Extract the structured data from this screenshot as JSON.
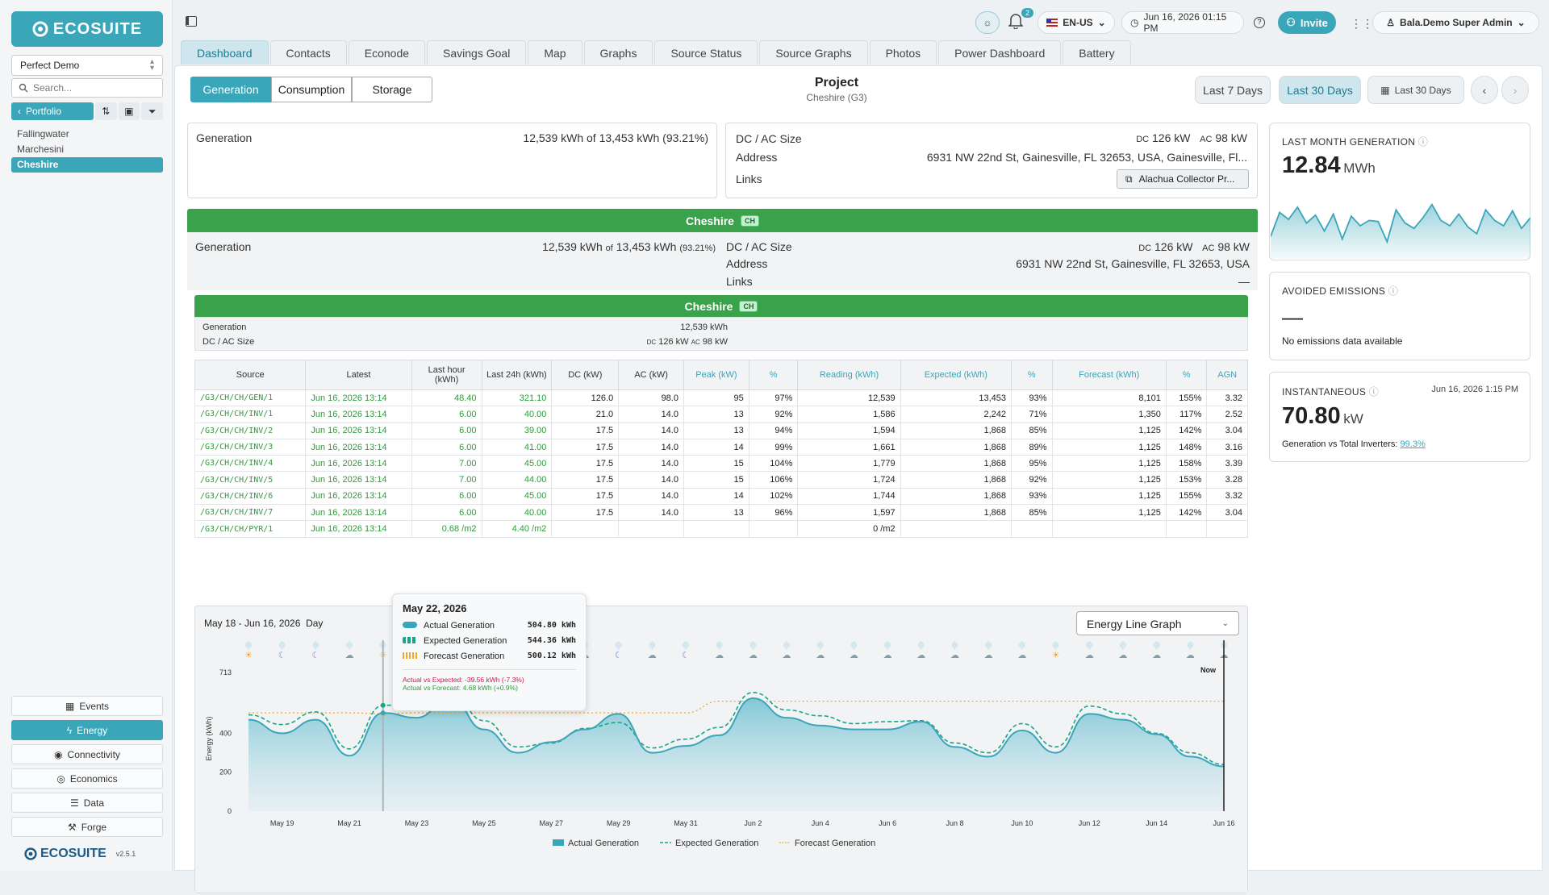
{
  "sidebar": {
    "portfolio_select": "Perfect Demo",
    "search_placeholder": "Search...",
    "portfolio_btn": "Portfolio",
    "projects": [
      "Fallingwater",
      "Marchesini",
      "Cheshire"
    ],
    "nav": [
      {
        "label": "Events",
        "icon": "calendar-icon"
      },
      {
        "label": "Energy",
        "icon": "lightning-icon"
      },
      {
        "label": "Connectivity",
        "icon": "signal-icon"
      },
      {
        "label": "Economics",
        "icon": "coins-icon"
      },
      {
        "label": "Data",
        "icon": "database-icon"
      },
      {
        "label": "Forge",
        "icon": "hammer-icon"
      }
    ],
    "footer_logo": "ECOSUITE",
    "version": "v2.5.1"
  },
  "logo": "ECOSUITE",
  "topbar": {
    "badge": "2",
    "lang": "EN-US",
    "datetime": "Jun 16, 2026 01:15 PM",
    "invite": "Invite",
    "user": "Bala.Demo Super Admin"
  },
  "tabs": [
    "Dashboard",
    "Contacts",
    "Econode",
    "Savings Goal",
    "Map",
    "Graphs",
    "Source Status",
    "Source Graphs",
    "Photos",
    "Power Dashboard",
    "Battery"
  ],
  "segment": [
    "Generation",
    "Consumption",
    "Storage"
  ],
  "project": {
    "title": "Project",
    "subtitle": "Cheshire (G3)"
  },
  "range": {
    "last7": "Last 7 Days",
    "last30": "Last 30 Days",
    "picker": "Last 30 Days"
  },
  "summary": {
    "gen_label": "Generation",
    "gen_value": "12,539 kWh of 13,453 kWh (93.21%)",
    "dcac_label": "DC / AC Size",
    "dc_pre": "DC",
    "dc": "126 kW",
    "ac_pre": "AC",
    "ac": "98 kW",
    "addr_label": "Address",
    "addr": "6931 NW 22nd St, Gainesville, FL 32653, USA, Gainesville, Fl...",
    "links_label": "Links",
    "link_btn": "Alachua Collector Pr..."
  },
  "site": {
    "name": "Cheshire",
    "tag": "CH",
    "gen_label": "Generation",
    "gen_main": "12,539 kWh",
    "gen_of": "of",
    "gen_total": "13,453 kWh",
    "gen_pct": "(93.21%)",
    "dcac_label": "DC / AC Size",
    "dc_pre": "DC",
    "dc": "126 kW",
    "ac_pre": "AC",
    "ac": "98 kW",
    "addr_label": "Address",
    "addr": "6931 NW 22nd St, Gainesville, FL 32653, USA",
    "links_label": "Links",
    "links_val": "—"
  },
  "system": {
    "name": "Cheshire",
    "tag": "CH",
    "gen_label": "Generation",
    "gen": "12,539 kWh",
    "dcac_label": "DC / AC Size",
    "dc_pre": "DC",
    "dc": "126 kW",
    "ac_pre": "AC",
    "ac": "98 kW"
  },
  "table": {
    "headers": [
      "Source",
      "Latest",
      "Last hour (kWh)",
      "Last 24h (kWh)",
      "DC (kW)",
      "AC (kW)",
      "Peak (kW)",
      "%",
      "Reading (kWh)",
      "Expected (kWh)",
      "%",
      "Forecast (kWh)",
      "%",
      "AGN"
    ],
    "rows": [
      [
        "/G3/CH/CH/GEN/1",
        "Jun 16, 2026 13:14",
        "48.40",
        "321.10",
        "126.0",
        "98.0",
        "95",
        "97%",
        "12,539",
        "13,453",
        "93%",
        "8,101",
        "155%",
        "3.32"
      ],
      [
        "/G3/CH/CH/INV/1",
        "Jun 16, 2026 13:14",
        "6.00",
        "40.00",
        "21.0",
        "14.0",
        "13",
        "92%",
        "1,586",
        "2,242",
        "71%",
        "1,350",
        "117%",
        "2.52"
      ],
      [
        "/G3/CH/CH/INV/2",
        "Jun 16, 2026 13:14",
        "6.00",
        "39.00",
        "17.5",
        "14.0",
        "13",
        "94%",
        "1,594",
        "1,868",
        "85%",
        "1,125",
        "142%",
        "3.04"
      ],
      [
        "/G3/CH/CH/INV/3",
        "Jun 16, 2026 13:14",
        "6.00",
        "41.00",
        "17.5",
        "14.0",
        "14",
        "99%",
        "1,661",
        "1,868",
        "89%",
        "1,125",
        "148%",
        "3.16"
      ],
      [
        "/G3/CH/CH/INV/4",
        "Jun 16, 2026 13:14",
        "7.00",
        "45.00",
        "17.5",
        "14.0",
        "15",
        "104%",
        "1,779",
        "1,868",
        "95%",
        "1,125",
        "158%",
        "3.39"
      ],
      [
        "/G3/CH/CH/INV/5",
        "Jun 16, 2026 13:14",
        "7.00",
        "44.00",
        "17.5",
        "14.0",
        "15",
        "106%",
        "1,724",
        "1,868",
        "92%",
        "1,125",
        "153%",
        "3.28"
      ],
      [
        "/G3/CH/CH/INV/6",
        "Jun 16, 2026 13:14",
        "6.00",
        "45.00",
        "17.5",
        "14.0",
        "14",
        "102%",
        "1,744",
        "1,868",
        "93%",
        "1,125",
        "155%",
        "3.32"
      ],
      [
        "/G3/CH/CH/INV/7",
        "Jun 16, 2026 13:14",
        "6.00",
        "40.00",
        "17.5",
        "14.0",
        "13",
        "96%",
        "1,597",
        "1,868",
        "85%",
        "1,125",
        "142%",
        "3.04"
      ],
      [
        "/G3/CH/CH/PYR/1",
        "Jun 16, 2026 13:14",
        "0.68 /m2",
        "4.40 /m2",
        "",
        "",
        "",
        "",
        "0 /m2",
        "",
        "",
        "",
        "",
        ""
      ]
    ]
  },
  "chart_header": {
    "range": "May 18 - Jun 16, 2026",
    "unit": "Day",
    "select": "Energy Line Graph"
  },
  "tooltip": {
    "date": "May 22, 2026",
    "rows": [
      {
        "label": "Actual Generation",
        "value": "504.80 kWh"
      },
      {
        "label": "Expected Generation",
        "value": "544.36 kWh"
      },
      {
        "label": "Forecast Generation",
        "value": "500.12 kWh"
      }
    ],
    "diff1": "Actual vs Expected: -39.56 kWh (-7.3%)",
    "diff2": "Actual vs Forecast: 4.68 kWh (+0.9%)"
  },
  "chart_data": {
    "type": "area",
    "ylabel": "Energy (kWh)",
    "yticks": [
      0,
      200,
      400,
      713
    ],
    "ylim": [
      0,
      750
    ],
    "x": [
      "May 18",
      "May 19",
      "May 20",
      "May 21",
      "May 22",
      "May 23",
      "May 24",
      "May 25",
      "May 26",
      "May 27",
      "May 28",
      "May 29",
      "May 30",
      "May 31",
      "Jun 1",
      "Jun 2",
      "Jun 3",
      "Jun 4",
      "Jun 5",
      "Jun 6",
      "Jun 7",
      "Jun 8",
      "Jun 9",
      "Jun 10",
      "Jun 11",
      "Jun 12",
      "Jun 13",
      "Jun 14",
      "Jun 15",
      "Jun 16"
    ],
    "xticks": [
      "May 19",
      "May 21",
      "May 23",
      "May 25",
      "May 27",
      "May 29",
      "May 31",
      "Jun 2",
      "Jun 4",
      "Jun 6",
      "Jun 8",
      "Jun 10",
      "Jun 12",
      "Jun 14",
      "Jun 16"
    ],
    "now_label": "Now",
    "series": [
      {
        "name": "Actual Generation",
        "color": "#3aa6b9",
        "values": [
          470,
          400,
          470,
          285,
          505,
          480,
          585,
          420,
          300,
          355,
          420,
          500,
          300,
          335,
          390,
          580,
          480,
          440,
          420,
          420,
          460,
          330,
          280,
          415,
          300,
          500,
          470,
          395,
          280,
          230
        ]
      },
      {
        "name": "Expected Generation",
        "color": "#1aa588",
        "values": [
          495,
          445,
          510,
          320,
          544,
          550,
          620,
          465,
          330,
          350,
          425,
          455,
          325,
          370,
          430,
          610,
          520,
          490,
          450,
          460,
          465,
          350,
          300,
          450,
          330,
          540,
          500,
          400,
          300,
          240
        ]
      },
      {
        "name": "Forecast Generation",
        "color": "#f5a623",
        "values": [
          505,
          505,
          505,
          505,
          500,
          505,
          505,
          505,
          505,
          505,
          505,
          505,
          505,
          505,
          565,
          565,
          565,
          565,
          565,
          565,
          565,
          565,
          565,
          565,
          565,
          565,
          565,
          565,
          565,
          565
        ]
      }
    ],
    "weather": [
      "sun",
      "moon",
      "moon",
      "cloud",
      "sun",
      "cloud",
      "moon",
      "sun",
      "cloud",
      "moon",
      "cloud",
      "moon",
      "cloud",
      "moon",
      "cloud",
      "cloud",
      "cloud",
      "cloud",
      "cloud",
      "cloud",
      "cloud",
      "cloud",
      "cloud",
      "cloud",
      "sun",
      "cloud",
      "cloud",
      "cloud",
      "cloud",
      "cloud"
    ]
  },
  "right": {
    "lmg_label": "LAST MONTH GENERATION",
    "lmg_value": "12.84",
    "lmg_unit": "MWh",
    "ae_label": "AVOIDED EMISSIONS",
    "ae_value": "—",
    "ae_note": "No emissions data available",
    "inst_label": "INSTANTANEOUS",
    "inst_time": "Jun 16, 2026 1:15 PM",
    "inst_value": "70.80",
    "inst_unit": "kW",
    "inst_note": "Generation vs Total Inverters:",
    "inst_link": "99.3%",
    "spark": [
      0.3,
      0.75,
      0.62,
      0.85,
      0.55,
      0.7,
      0.4,
      0.72,
      0.25,
      0.68,
      0.5,
      0.6,
      0.58,
      0.2,
      0.8,
      0.55,
      0.45,
      0.65,
      0.9,
      0.6,
      0.5,
      0.72,
      0.48,
      0.35,
      0.8,
      0.6,
      0.5,
      0.78,
      0.45,
      0.65
    ]
  },
  "colors": {
    "accent": "#3aa6b9",
    "green": "#3aa24a"
  }
}
